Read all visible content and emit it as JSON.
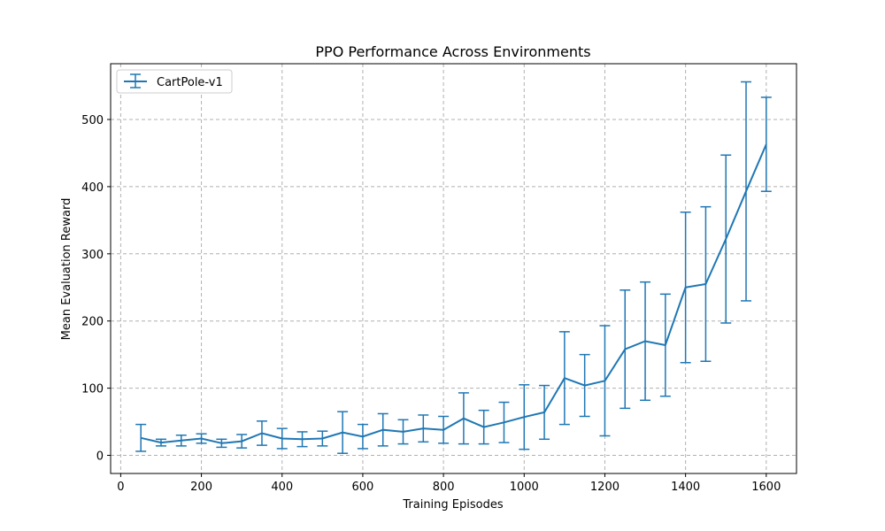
{
  "chart_data": {
    "type": "line",
    "title": "PPO Performance Across Environments",
    "xlabel": "Training Episodes",
    "ylabel": "Mean Evaluation Reward",
    "xlim": [
      -25,
      1675
    ],
    "ylim": [
      -27,
      583
    ],
    "xticks": [
      0,
      200,
      400,
      600,
      800,
      1000,
      1200,
      1400,
      1600
    ],
    "yticks": [
      0,
      100,
      200,
      300,
      400,
      500
    ],
    "grid": true,
    "legend_position": "top-left",
    "series": [
      {
        "name": "CartPole-v1",
        "color": "#1f77b4",
        "x": [
          50,
          100,
          150,
          200,
          250,
          300,
          350,
          400,
          450,
          500,
          550,
          600,
          650,
          700,
          750,
          800,
          850,
          900,
          950,
          1000,
          1050,
          1100,
          1150,
          1200,
          1250,
          1300,
          1350,
          1400,
          1450,
          1500,
          1550,
          1600
        ],
        "y": [
          26,
          19,
          22,
          25,
          18,
          21,
          33,
          25,
          24,
          25,
          34,
          28,
          38,
          35,
          40,
          38,
          55,
          42,
          49,
          57,
          64,
          115,
          104,
          111,
          158,
          170,
          164,
          250,
          255,
          322,
          393,
          463
        ],
        "err": [
          20,
          5,
          8,
          7,
          6,
          10,
          18,
          15,
          11,
          11,
          31,
          18,
          24,
          18,
          20,
          20,
          38,
          25,
          30,
          48,
          40,
          69,
          46,
          82,
          88,
          88,
          76,
          112,
          115,
          125,
          163,
          70
        ]
      }
    ]
  }
}
